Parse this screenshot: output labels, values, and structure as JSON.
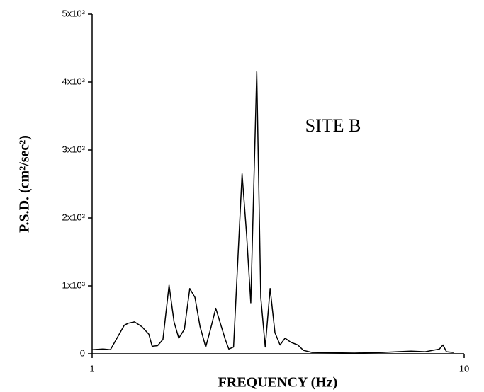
{
  "chart_data": {
    "type": "line",
    "annotation": "SITE B",
    "xlabel": "FREQUENCY (Hz)",
    "ylabel": "P.S.D. (cm²/sec²)",
    "xscale": "log",
    "xlim": [
      1,
      10
    ],
    "xticks": [
      1,
      10
    ],
    "ylim": [
      0,
      5000
    ],
    "yticks": [
      0,
      {
        "value": 1000,
        "label": "1x10³"
      },
      {
        "value": 2000,
        "label": "2x10³"
      },
      {
        "value": 3000,
        "label": "3x10³"
      },
      {
        "value": 4000,
        "label": "4x10³"
      },
      {
        "value": 5000,
        "label": "5x10³"
      }
    ],
    "grid": false,
    "series": [
      {
        "color": "#000000",
        "x": [
          1.0,
          1.07,
          1.12,
          1.22,
          1.25,
          1.3,
          1.36,
          1.42,
          1.45,
          1.5,
          1.55,
          1.61,
          1.66,
          1.71,
          1.77,
          1.83,
          1.89,
          1.95,
          2.02,
          2.08,
          2.15,
          2.22,
          2.28,
          2.33,
          2.4,
          2.53,
          2.6,
          2.67,
          2.77,
          2.84,
          2.92,
          3.01,
          3.1,
          3.2,
          3.3,
          3.42,
          3.57,
          3.7,
          3.9,
          5.07,
          6.04,
          6.59,
          7.2,
          7.86,
          8.58,
          8.77,
          8.96,
          9.36
        ],
        "values": [
          60,
          70,
          60,
          420,
          450,
          470,
          400,
          290,
          110,
          120,
          210,
          1010,
          470,
          230,
          360,
          960,
          830,
          400,
          100,
          360,
          670,
          420,
          210,
          70,
          100,
          2650,
          1770,
          750,
          4150,
          830,
          100,
          960,
          310,
          130,
          230,
          170,
          130,
          50,
          20,
          10,
          20,
          30,
          40,
          30,
          70,
          130,
          30,
          20
        ]
      }
    ]
  }
}
